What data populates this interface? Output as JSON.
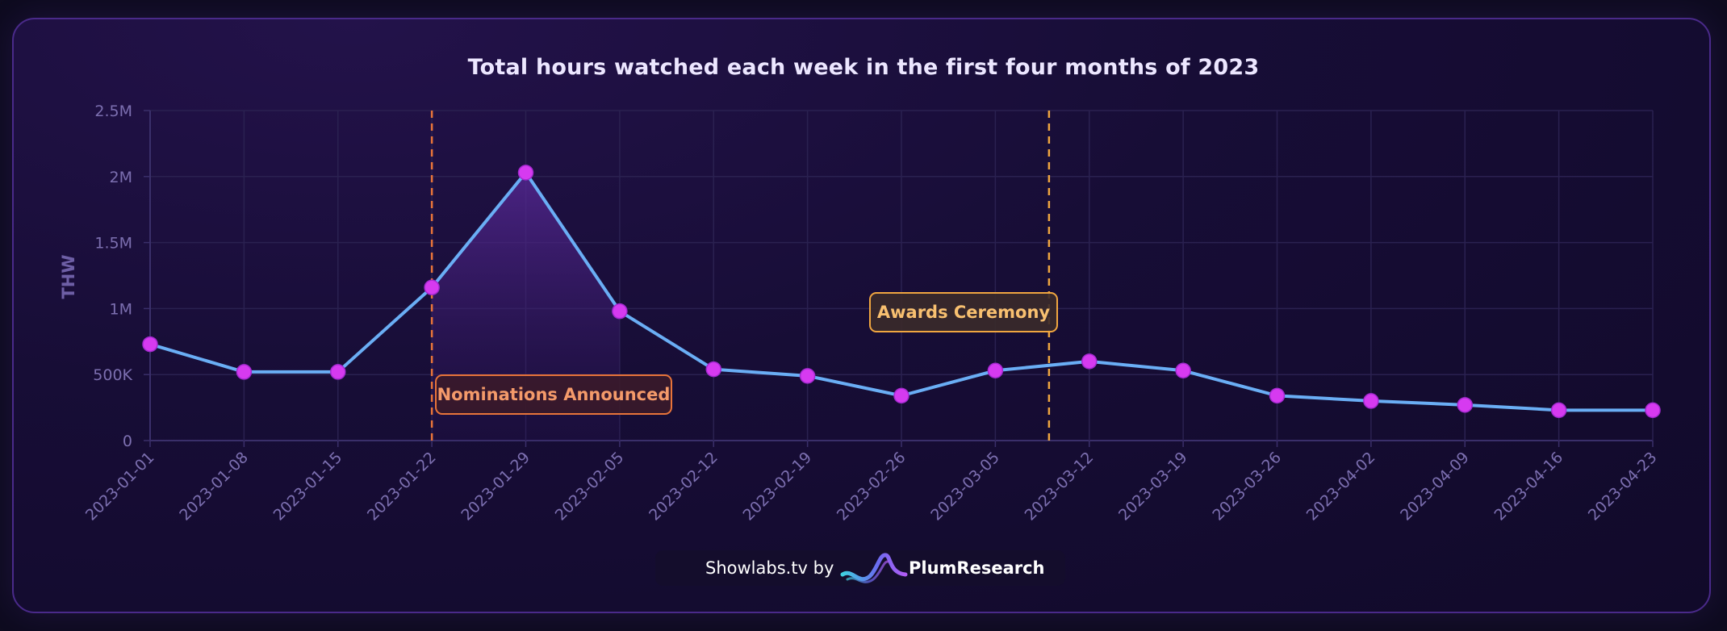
{
  "chart_data": {
    "type": "line",
    "title": "Total hours watched each week in the first four months of 2023",
    "ylabel": "THW",
    "xlabel": "",
    "ylim": [
      0,
      2500000
    ],
    "y_ticks": [
      {
        "value": 0,
        "label": "0"
      },
      {
        "value": 500000,
        "label": "500K"
      },
      {
        "value": 1000000,
        "label": "1M"
      },
      {
        "value": 1500000,
        "label": "1.5M"
      },
      {
        "value": 2000000,
        "label": "2M"
      },
      {
        "value": 2500000,
        "label": "2.5M"
      }
    ],
    "categories": [
      "2023-01-01",
      "2023-01-08",
      "2023-01-15",
      "2023-01-22",
      "2023-01-29",
      "2023-02-05",
      "2023-02-12",
      "2023-02-19",
      "2023-02-26",
      "2023-03-05",
      "2023-03-12",
      "2023-03-19",
      "2023-03-26",
      "2023-04-02",
      "2023-04-09",
      "2023-04-16",
      "2023-04-23"
    ],
    "values": [
      730000,
      520000,
      520000,
      1160000,
      2030000,
      980000,
      540000,
      490000,
      340000,
      530000,
      600000,
      530000,
      340000,
      300000,
      270000,
      230000,
      230000
    ],
    "grid": true,
    "shaded_region": {
      "from": "2023-01-22",
      "to": "2023-02-05"
    },
    "annotations": [
      {
        "label": "Nominations Announced",
        "at": "2023-01-22",
        "color": "#e8743a"
      },
      {
        "label": "Awards Ceremony",
        "at": "2023-03-09",
        "color": "#f0a640"
      }
    ],
    "colors": {
      "line": "#6aaef5",
      "marker": "#d63af0",
      "fill": "#5a2a9a"
    }
  },
  "footer": {
    "text": "Showlabs.tv by",
    "brand": "PlumResearch"
  }
}
